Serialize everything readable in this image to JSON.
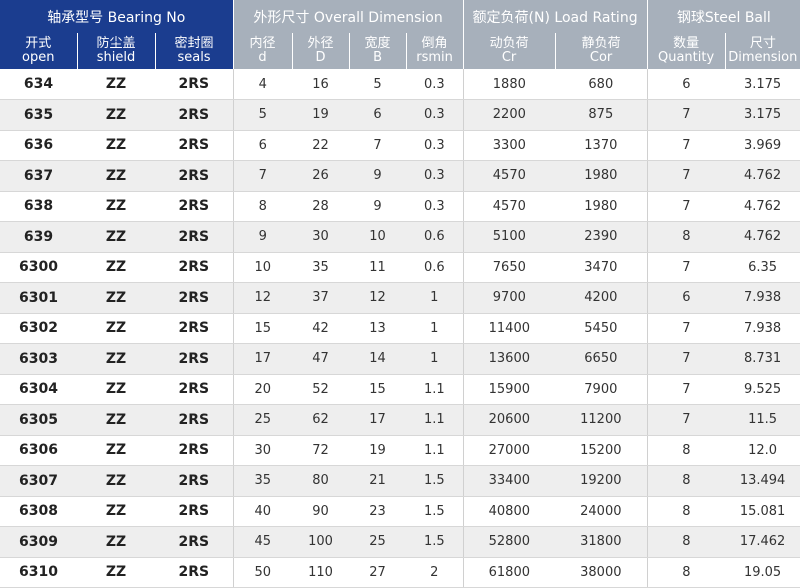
{
  "groups": {
    "bearing_no": "轴承型号 Bearing No",
    "overall_dimension": "外形尺寸 Overall Dimension",
    "load_rating": "额定负荷(N) Load Rating",
    "steel_ball": "钢球Steel Ball"
  },
  "columns": [
    {
      "zh": "开式",
      "en": "open"
    },
    {
      "zh": "防尘盖",
      "en": "shield"
    },
    {
      "zh": "密封圈",
      "en": "seals"
    },
    {
      "zh": "内径",
      "en": "d"
    },
    {
      "zh": "外径",
      "en": "D"
    },
    {
      "zh": "宽度",
      "en": "B"
    },
    {
      "zh": "倒角",
      "en": "rsmin"
    },
    {
      "zh": "动负荷",
      "en": "Cr"
    },
    {
      "zh": "静负荷",
      "en": "Cor"
    },
    {
      "zh": "数量",
      "en": "Quantity"
    },
    {
      "zh": "尺寸",
      "en": "Dimension"
    }
  ],
  "rows": [
    [
      "634",
      "ZZ",
      "2RS",
      "4",
      "16",
      "5",
      "0.3",
      "1880",
      "680",
      "6",
      "3.175"
    ],
    [
      "635",
      "ZZ",
      "2RS",
      "5",
      "19",
      "6",
      "0.3",
      "2200",
      "875",
      "7",
      "3.175"
    ],
    [
      "636",
      "ZZ",
      "2RS",
      "6",
      "22",
      "7",
      "0.3",
      "3300",
      "1370",
      "7",
      "3.969"
    ],
    [
      "637",
      "ZZ",
      "2RS",
      "7",
      "26",
      "9",
      "0.3",
      "4570",
      "1980",
      "7",
      "4.762"
    ],
    [
      "638",
      "ZZ",
      "2RS",
      "8",
      "28",
      "9",
      "0.3",
      "4570",
      "1980",
      "7",
      "4.762"
    ],
    [
      "639",
      "ZZ",
      "2RS",
      "9",
      "30",
      "10",
      "0.6",
      "5100",
      "2390",
      "8",
      "4.762"
    ],
    [
      "6300",
      "ZZ",
      "2RS",
      "10",
      "35",
      "11",
      "0.6",
      "7650",
      "3470",
      "7",
      "6.35"
    ],
    [
      "6301",
      "ZZ",
      "2RS",
      "12",
      "37",
      "12",
      "1",
      "9700",
      "4200",
      "6",
      "7.938"
    ],
    [
      "6302",
      "ZZ",
      "2RS",
      "15",
      "42",
      "13",
      "1",
      "11400",
      "5450",
      "7",
      "7.938"
    ],
    [
      "6303",
      "ZZ",
      "2RS",
      "17",
      "47",
      "14",
      "1",
      "13600",
      "6650",
      "7",
      "8.731"
    ],
    [
      "6304",
      "ZZ",
      "2RS",
      "20",
      "52",
      "15",
      "1.1",
      "15900",
      "7900",
      "7",
      "9.525"
    ],
    [
      "6305",
      "ZZ",
      "2RS",
      "25",
      "62",
      "17",
      "1.1",
      "20600",
      "11200",
      "7",
      "11.5"
    ],
    [
      "6306",
      "ZZ",
      "2RS",
      "30",
      "72",
      "19",
      "1.1",
      "27000",
      "15200",
      "8",
      "12.0"
    ],
    [
      "6307",
      "ZZ",
      "2RS",
      "35",
      "80",
      "21",
      "1.5",
      "33400",
      "19200",
      "8",
      "13.494"
    ],
    [
      "6308",
      "ZZ",
      "2RS",
      "40",
      "90",
      "23",
      "1.5",
      "40800",
      "24000",
      "8",
      "15.081"
    ],
    [
      "6309",
      "ZZ",
      "2RS",
      "45",
      "100",
      "25",
      "1.5",
      "52800",
      "31800",
      "8",
      "17.462"
    ],
    [
      "6310",
      "ZZ",
      "2RS",
      "50",
      "110",
      "27",
      "2",
      "61800",
      "38000",
      "8",
      "19.05"
    ]
  ]
}
